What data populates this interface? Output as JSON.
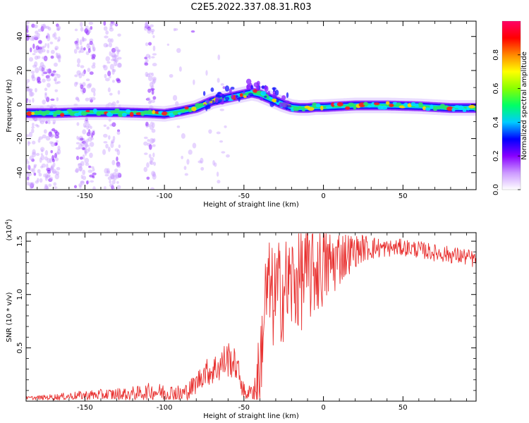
{
  "figure_title": "C2E5.2022.337.08.31.R03",
  "chart_data": [
    {
      "type": "heatmap",
      "xlabel": "Height of straight line (km)",
      "ylabel": "Frequency (Hz)",
      "xlim": [
        -187,
        96
      ],
      "ylim": [
        -50,
        49
      ],
      "xticks": [
        -150,
        -100,
        -50,
        0,
        50
      ],
      "xtick_labels": [
        "-150",
        "-100",
        "-50",
        "0",
        "50"
      ],
      "yticks": [
        -40,
        -20,
        0,
        20,
        40
      ],
      "ytick_labels": [
        "-40",
        "-20",
        "0",
        "20",
        "40"
      ],
      "ridge": {
        "x": [
          -187,
          -170,
          -150,
          -130,
          -110,
          -100,
          -90,
          -80,
          -70,
          -60,
          -50,
          -45,
          -40,
          -35,
          -30,
          -25,
          -20,
          -15,
          -10,
          -5,
          0,
          10,
          20,
          40,
          60,
          80,
          96
        ],
        "y": [
          -5,
          -5,
          -4.5,
          -4.5,
          -5,
          -5.5,
          -4,
          -2,
          2,
          4,
          6,
          7,
          6,
          4,
          2,
          0,
          -1.5,
          -2,
          -2,
          -1.5,
          -1.5,
          -1,
          -0.5,
          -0.5,
          -1,
          -2,
          -2
        ]
      },
      "colorbar": {
        "label": "Normalized spectral amplitude",
        "range": [
          0,
          1
        ],
        "ticks": [
          0.0,
          0.2,
          0.4,
          0.6,
          0.8
        ],
        "tick_labels": [
          "0.0",
          "0.2",
          "0.4",
          "0.6",
          "0.8"
        ],
        "colors": [
          "#ffffff",
          "#cc99ff",
          "#8800ff",
          "#0000ff",
          "#00ccff",
          "#00ff66",
          "#88ff00",
          "#ffff00",
          "#ff8800",
          "#ff0000",
          "#ff0066"
        ]
      },
      "grid": false
    },
    {
      "type": "line",
      "xlabel": "Height of straight line (km)",
      "ylabel": "SNR (10 * v/v)",
      "y_multiplier": "(x10",
      "y_multiplier_exp": "4",
      "y_multiplier_close": ")",
      "xlim": [
        -187,
        96
      ],
      "ylim": [
        0.0,
        1.58
      ],
      "xticks": [
        -150,
        -100,
        -50,
        0,
        50
      ],
      "xtick_labels": [
        "-150",
        "-100",
        "-50",
        "0",
        "50"
      ],
      "yticks": [
        0.5,
        1.0,
        1.5
      ],
      "ytick_labels": [
        "0.5",
        "1.0",
        "1.5"
      ],
      "series": [
        {
          "color": "#e8302f",
          "envelope": {
            "x": [
              -187,
              -170,
              -150,
              -130,
              -115,
              -110,
              -100,
              -90,
              -85,
              -80,
              -75,
              -70,
              -65,
              -60,
              -55,
              -52,
              -50,
              -45,
              -42,
              -40,
              -38,
              -36,
              -34,
              -32,
              -30,
              -25,
              -20,
              -15,
              -10,
              -5,
              0,
              5,
              10,
              15,
              20,
              25,
              30,
              40,
              50,
              60,
              70,
              80,
              90,
              96
            ],
            "y": [
              0.03,
              0.04,
              0.06,
              0.07,
              0.08,
              0.1,
              0.09,
              0.07,
              0.1,
              0.18,
              0.28,
              0.3,
              0.35,
              0.42,
              0.35,
              0.22,
              0.08,
              0.1,
              0.15,
              0.35,
              0.75,
              1.05,
              1.1,
              1.0,
              1.05,
              1.1,
              1.15,
              1.2,
              1.25,
              1.28,
              1.3,
              1.32,
              1.38,
              1.4,
              1.42,
              1.45,
              1.45,
              1.44,
              1.45,
              1.43,
              1.4,
              1.38,
              1.36,
              1.33
            ]
          },
          "noise": {
            "x": [
              -187,
              -80,
              -60,
              -45,
              -40,
              -30,
              -10,
              0,
              20,
              40,
              96
            ],
            "amplitude": [
              0.015,
              0.1,
              0.18,
              0.05,
              0.45,
              0.5,
              0.5,
              0.4,
              0.15,
              0.08,
              0.08
            ]
          }
        }
      ],
      "grid": false
    }
  ]
}
